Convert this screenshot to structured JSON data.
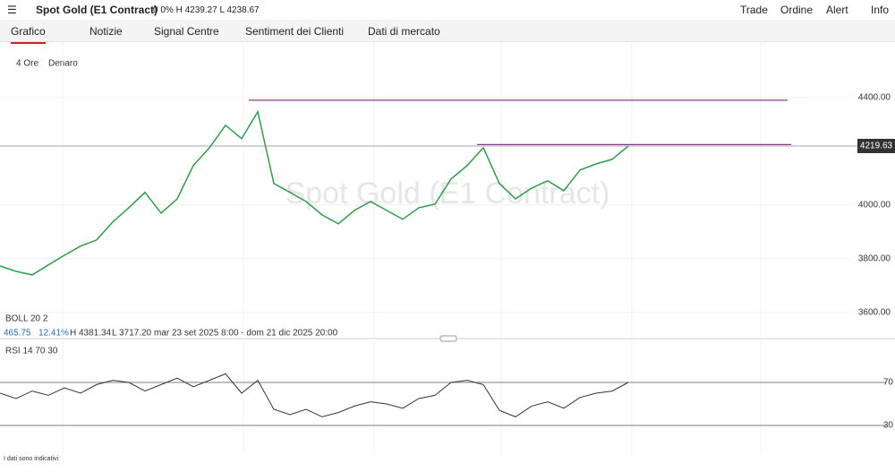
{
  "header": {
    "menu": "☰",
    "instrument": "Spot Gold (E1 Contract)",
    "quote": "0  0% H 4239.27 L 4238.67",
    "actions": [
      "Trade",
      "Ordine",
      "Alert",
      "Info"
    ]
  },
  "tabs": [
    "Grafico",
    "Notizie",
    "Signal Centre",
    "Sentiment dei Clienti",
    "Dati di mercato"
  ],
  "chart": {
    "timeframe": "4 Ore",
    "price_type": "Denaro",
    "watermark": "Spot Gold (E1 Contract)",
    "ylim": [
      3503,
      4603
    ],
    "yticks": [
      {
        "value": 3600,
        "label": "3600.00"
      },
      {
        "value": 3800,
        "label": "3800.00"
      },
      {
        "value": 4000,
        "label": "4000.00"
      },
      {
        "value": 4400,
        "label": "4400.00"
      }
    ],
    "last_price": 4219.63,
    "levels": [
      4390,
      4225
    ],
    "closes": [
      3773,
      3753,
      3740,
      3777,
      3813,
      3847,
      3870,
      3937,
      3990,
      4047,
      3970,
      4023,
      4147,
      4213,
      4297,
      4247,
      4347,
      4080,
      4047,
      4013,
      3963,
      3930,
      3980,
      4013,
      3980,
      3947,
      3990,
      4003,
      4097,
      4147,
      4213,
      4080,
      4023,
      4063,
      4090,
      4053,
      4130,
      4153,
      4170,
      4219.63
    ],
    "color": "#2e9c4a"
  },
  "boll": {
    "label": "BOLL  20  2",
    "width": "465.75",
    "pct": "12.41%",
    "high": "H 4381.34",
    "low": "L 3717.20",
    "range": "mar 23 set 2025 8:00 - dom 21 dic 2025 20:00"
  },
  "rsi": {
    "label": "RSI  14  70  30",
    "ylim": [
      5,
      105
    ],
    "yticks": [
      30,
      70
    ],
    "values": [
      60,
      55,
      62,
      58,
      65,
      60,
      68,
      72,
      70,
      62,
      68,
      74,
      66,
      72,
      78,
      60,
      72,
      45,
      40,
      45,
      38,
      42,
      48,
      52,
      50,
      46,
      55,
      58,
      70,
      72,
      68,
      44,
      38,
      48,
      52,
      46,
      56,
      60,
      62,
      70
    ]
  },
  "disclaimer": "I dati sono indicativi"
}
